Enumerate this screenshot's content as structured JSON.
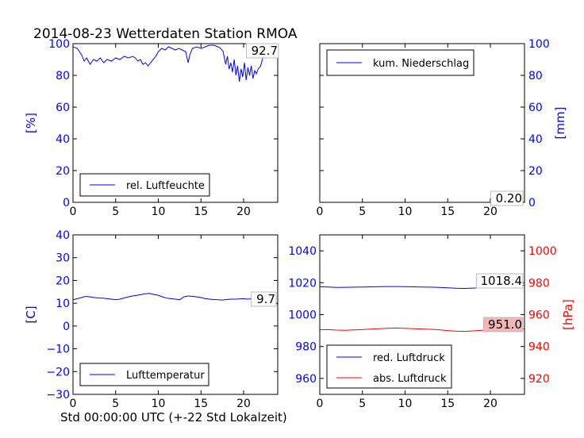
{
  "figure": {
    "title": "2014-08-23 Wetterdaten Station RMOA",
    "xlabel": "Std 00:00:00 UTC (+-22 Std Lokalzeit)"
  },
  "colors": {
    "blue": "#0000ff",
    "red": "#ff0000",
    "black": "#000000",
    "box_red": "#f4b7b7"
  },
  "chart_data": [
    {
      "id": "humidity",
      "type": "line",
      "xlim": [
        0,
        24
      ],
      "ylim": [
        0,
        100
      ],
      "xticks": [
        0,
        5,
        10,
        15,
        20
      ],
      "yticks": [
        0,
        20,
        40,
        60,
        80,
        100
      ],
      "ylabel": "[%]",
      "last_value": "92.7",
      "series": [
        {
          "name": "rel. Luftfeuchte",
          "color": "#0000ff",
          "x": [
            0,
            0.5,
            1,
            1.3,
            1.6,
            2.0,
            2.4,
            2.8,
            3.2,
            3.6,
            4.0,
            4.5,
            5.0,
            5.5,
            6.0,
            6.5,
            7.0,
            7.3,
            7.6,
            7.9,
            8.2,
            8.5,
            8.8,
            9.1,
            9.4,
            9.7,
            10.0,
            10.4,
            10.8,
            11.2,
            11.6,
            12.0,
            12.4,
            12.8,
            13.2,
            13.5,
            13.7,
            14.0,
            14.5,
            15.0,
            15.5,
            16.0,
            16.5,
            17.0,
            17.3,
            17.6,
            17.9,
            18.1,
            18.3,
            18.5,
            18.7,
            18.9,
            19.1,
            19.3,
            19.5,
            19.7,
            19.9,
            20.1,
            20.3,
            20.5,
            20.7,
            20.9,
            21.1,
            21.3,
            21.5,
            21.7,
            22.0,
            22.3,
            22.6,
            22.9,
            23.2,
            23.5,
            23.8
          ],
          "values": [
            98,
            97,
            93,
            89,
            91,
            87,
            90,
            89,
            91,
            88,
            90,
            89,
            91,
            90,
            92,
            91,
            92,
            91,
            89,
            90,
            87,
            88,
            86,
            88,
            90,
            92,
            95,
            97,
            96,
            98,
            97,
            96,
            97,
            96,
            95,
            88,
            93,
            97,
            98,
            97,
            98,
            99,
            99,
            98,
            97,
            95,
            87,
            92,
            84,
            88,
            82,
            90,
            80,
            86,
            76,
            84,
            79,
            88,
            77,
            85,
            80,
            86,
            78,
            83,
            81,
            84,
            86,
            92,
            95,
            96,
            97,
            94,
            93
          ]
        }
      ]
    },
    {
      "id": "precipitation",
      "type": "line",
      "xlim": [
        0,
        24
      ],
      "ylim": [
        0,
        100
      ],
      "xticks": [
        0,
        5,
        10,
        15,
        20
      ],
      "yticks": [
        0,
        20,
        40,
        60,
        80,
        100
      ],
      "ylabel": "[mm]",
      "last_value": "0.20",
      "series": [
        {
          "name": "kum. Niederschlag",
          "color": "#0000ff",
          "x": [
            0,
            5,
            10,
            15,
            20,
            21,
            24
          ],
          "values": [
            0,
            0,
            0,
            0,
            0,
            0.2,
            0.2
          ]
        }
      ]
    },
    {
      "id": "temperature",
      "type": "line",
      "xlim": [
        0,
        24
      ],
      "ylim": [
        -30,
        40
      ],
      "xticks": [
        0,
        5,
        10,
        15,
        20
      ],
      "yticks": [
        -30,
        -20,
        -10,
        0,
        10,
        20,
        30,
        40
      ],
      "ylabel": "[C]",
      "last_value": "9.7",
      "series": [
        {
          "name": "Lufttemperatur",
          "color": "#0000ff",
          "x": [
            0,
            0.5,
            1.0,
            1.5,
            2.0,
            2.5,
            3.0,
            3.5,
            4.0,
            4.5,
            5.0,
            5.5,
            6.0,
            6.5,
            7.0,
            7.5,
            8.0,
            8.5,
            9.0,
            9.5,
            10.0,
            10.5,
            11.0,
            11.5,
            12.0,
            12.5,
            13.0,
            13.5,
            14.0,
            14.5,
            15.0,
            15.5,
            16.0,
            16.5,
            17.0,
            17.5,
            18.0,
            18.5,
            19.0,
            19.5,
            20.0,
            20.5,
            21.0,
            21.5,
            22.0,
            22.5,
            23.0,
            23.5,
            24.0
          ],
          "values": [
            11.5,
            12.0,
            12.5,
            13.0,
            12.8,
            12.5,
            12.3,
            12.2,
            12.0,
            11.8,
            11.5,
            11.8,
            12.3,
            12.8,
            13.2,
            13.5,
            13.8,
            14.2,
            14.3,
            13.8,
            13.5,
            12.8,
            12.2,
            12.0,
            11.8,
            11.5,
            12.8,
            13.2,
            13.0,
            12.8,
            12.5,
            12.0,
            11.8,
            11.6,
            11.5,
            11.4,
            11.6,
            11.8,
            11.8,
            11.9,
            12.0,
            11.8,
            12.0,
            11.2,
            11.8,
            11.0,
            10.2,
            9.9,
            9.7
          ]
        }
      ]
    },
    {
      "id": "pressure",
      "type": "line",
      "xlim": [
        0,
        24
      ],
      "ylim": [
        950,
        1050
      ],
      "y2lim": [
        910,
        1010
      ],
      "xticks": [
        0,
        5,
        10,
        15,
        20
      ],
      "yticks": [
        960,
        980,
        1000,
        1020,
        1040
      ],
      "y2ticks": [
        920,
        940,
        960,
        980,
        1000
      ],
      "y2label": "[hPa]",
      "last_value": "1018.4",
      "last_value2": "951.0",
      "series": [
        {
          "name": "red. Luftdruck",
          "color": "#0000ff",
          "axis": "left",
          "x": [
            0,
            1,
            2,
            3,
            4,
            5,
            6,
            7,
            8,
            9,
            10,
            11,
            12,
            13,
            14,
            15,
            16,
            17,
            18,
            19,
            20,
            21,
            22,
            23,
            24
          ],
          "values": [
            1017.5,
            1017.3,
            1017.0,
            1017.1,
            1017.2,
            1017.3,
            1017.4,
            1017.5,
            1017.6,
            1017.6,
            1017.5,
            1017.4,
            1017.3,
            1017.2,
            1017.0,
            1016.8,
            1016.5,
            1016.4,
            1016.6,
            1016.9,
            1017.4,
            1017.8,
            1018.1,
            1018.3,
            1018.4
          ]
        },
        {
          "name": "abs. Luftdruck",
          "color": "#ff0000",
          "axis": "right",
          "x": [
            0,
            1,
            2,
            3,
            4,
            5,
            6,
            7,
            8,
            9,
            10,
            11,
            12,
            13,
            14,
            15,
            16,
            17,
            18,
            19,
            20,
            21,
            22,
            23,
            24
          ],
          "values": [
            950.5,
            950.6,
            950.3,
            950.2,
            950.4,
            950.6,
            950.9,
            951.2,
            951.5,
            951.6,
            951.4,
            951.2,
            951.0,
            950.8,
            950.5,
            950.0,
            949.6,
            949.5,
            949.8,
            950.2,
            950.8,
            951.3,
            951.5,
            951.2,
            951.0
          ]
        }
      ]
    }
  ]
}
